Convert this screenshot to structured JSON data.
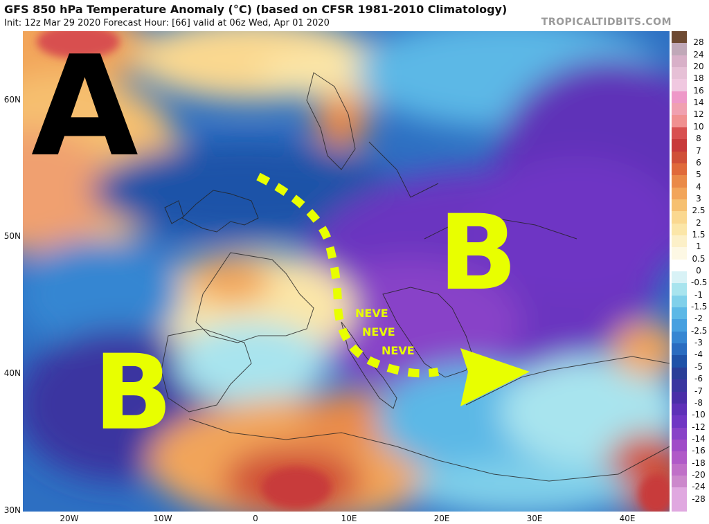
{
  "header": {
    "title": "GFS 850 hPa Temperature Anomaly (°C) (based on CFSR 1981-2010 Climatology)",
    "subtitle": "Init: 12z Mar 29 2020   Forecast Hour: [66]   valid at 06z Wed, Apr 01 2020",
    "brand": "TROPICALTIDBITS.COM"
  },
  "axes": {
    "lat_labels": [
      "60N",
      "50N",
      "40N",
      "30N"
    ],
    "lon_labels": [
      "20W",
      "10W",
      "0",
      "10E",
      "20E",
      "30E",
      "40E"
    ]
  },
  "annotations": {
    "high_label": "A",
    "low_west_label": "B",
    "low_east_label": "B",
    "snow_1": "NEVE",
    "snow_2": "NEVE",
    "snow_3": "NEVE"
  },
  "colors": {
    "annotation_yellow": "#e8ff00",
    "high_label_color": "#000000"
  },
  "colorbar": {
    "labels": [
      "28",
      "24",
      "20",
      "18",
      "16",
      "14",
      "12",
      "10",
      "8",
      "7",
      "6",
      "5",
      "4",
      "3",
      "2.5",
      "2",
      "1.5",
      "1",
      "0.5",
      "0",
      "-0.5",
      "-1",
      "-1.5",
      "-2",
      "-2.5",
      "-3",
      "-4",
      "-5",
      "-6",
      "-7",
      "-8",
      "-10",
      "-12",
      "-14",
      "-16",
      "-18",
      "-20",
      "-24",
      "-28"
    ],
    "colors": [
      "#6e4a32",
      "#c0a8b8",
      "#d8b0c8",
      "#e6c0d6",
      "#f0c8e0",
      "#ee98c8",
      "#f0a0b0",
      "#f09090",
      "#d85050",
      "#c83a3a",
      "#d05038",
      "#e06a3a",
      "#ea8a48",
      "#f2a55a",
      "#f6c070",
      "#fad890",
      "#fbe6a8",
      "#fcf0c8",
      "#fdf8e4",
      "#ffffff",
      "#d8f2f6",
      "#a8e4ee",
      "#80d0ea",
      "#5cb8e6",
      "#46a0e0",
      "#3686d2",
      "#2a6cc0",
      "#1f52a8",
      "#2a3e98",
      "#3a36a0",
      "#4a2ea8",
      "#5e30b8",
      "#7036c4",
      "#8842c8",
      "#a04cc8",
      "#b05ac8",
      "#c070c8",
      "#cc88cc",
      "#e0a8e0"
    ]
  }
}
